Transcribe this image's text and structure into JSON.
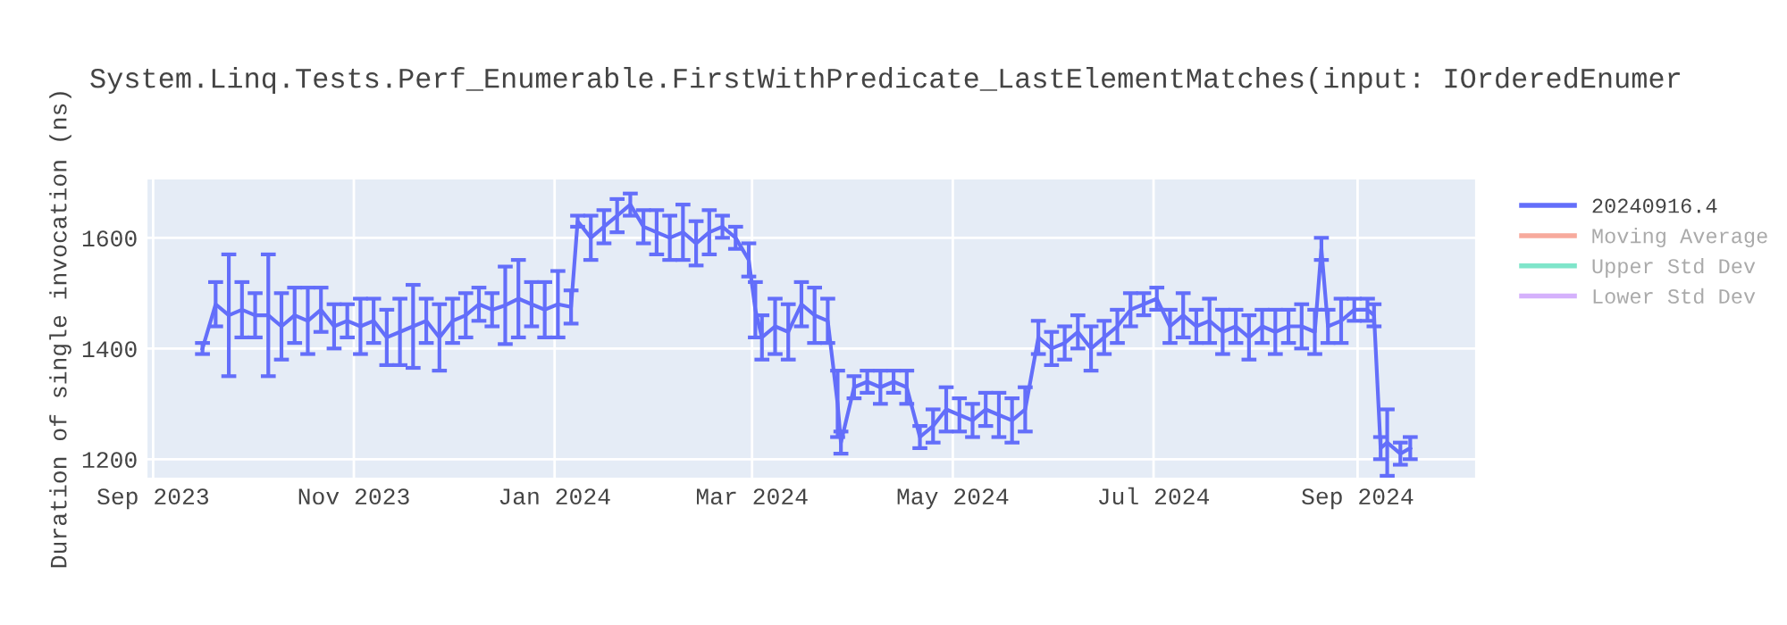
{
  "chart_data": {
    "type": "line",
    "title": "System.Linq.Tests.Perf_Enumerable.FirstWithPredicate_LastElementMatches(input: IOrderedEnumer",
    "ylabel": "Duration of single invocation (ns)",
    "x": [
      "2023-09-16",
      "2023-09-20",
      "2023-09-24",
      "2023-09-28",
      "2023-10-02",
      "2023-10-06",
      "2023-10-10",
      "2023-10-14",
      "2023-10-18",
      "2023-10-22",
      "2023-10-26",
      "2023-10-30",
      "2023-11-03",
      "2023-11-07",
      "2023-11-11",
      "2023-11-15",
      "2023-11-19",
      "2023-11-23",
      "2023-11-27",
      "2023-12-01",
      "2023-12-05",
      "2023-12-09",
      "2023-12-13",
      "2023-12-17",
      "2023-12-21",
      "2023-12-25",
      "2023-12-29",
      "2024-01-02",
      "2024-01-06",
      "2024-01-08",
      "2024-01-12",
      "2024-01-16",
      "2024-01-20",
      "2024-01-24",
      "2024-01-28",
      "2024-02-01",
      "2024-02-05",
      "2024-02-09",
      "2024-02-13",
      "2024-02-17",
      "2024-02-21",
      "2024-02-25",
      "2024-02-29",
      "2024-03-02",
      "2024-03-04",
      "2024-03-08",
      "2024-03-12",
      "2024-03-16",
      "2024-03-20",
      "2024-03-24",
      "2024-03-27",
      "2024-03-28",
      "2024-04-01",
      "2024-04-05",
      "2024-04-09",
      "2024-04-13",
      "2024-04-17",
      "2024-04-21",
      "2024-04-25",
      "2024-04-29",
      "2024-05-03",
      "2024-05-07",
      "2024-05-11",
      "2024-05-15",
      "2024-05-19",
      "2024-05-23",
      "2024-05-27",
      "2024-05-31",
      "2024-06-04",
      "2024-06-08",
      "2024-06-12",
      "2024-06-16",
      "2024-06-20",
      "2024-06-24",
      "2024-06-28",
      "2024-07-02",
      "2024-07-06",
      "2024-07-10",
      "2024-07-14",
      "2024-07-18",
      "2024-07-22",
      "2024-07-26",
      "2024-07-30",
      "2024-08-03",
      "2024-08-07",
      "2024-08-11",
      "2024-08-15",
      "2024-08-19",
      "2024-08-21",
      "2024-08-23",
      "2024-08-27",
      "2024-08-31",
      "2024-09-04",
      "2024-09-06",
      "2024-09-08",
      "2024-09-10",
      "2024-09-14",
      "2024-09-17"
    ],
    "series": [
      {
        "name": "20240916.4",
        "color": "#636efa",
        "values": [
          1400,
          1480,
          1460,
          1470,
          1460,
          1460,
          1440,
          1460,
          1450,
          1470,
          1440,
          1450,
          1440,
          1450,
          1420,
          1430,
          1440,
          1450,
          1420,
          1450,
          1460,
          1480,
          1470,
          1478,
          1490,
          1480,
          1470,
          1480,
          1475,
          1630,
          1600,
          1620,
          1640,
          1660,
          1620,
          1610,
          1600,
          1610,
          1590,
          1610,
          1620,
          1600,
          1560,
          1470,
          1420,
          1440,
          1430,
          1480,
          1460,
          1450,
          1300,
          1230,
          1330,
          1340,
          1330,
          1340,
          1330,
          1240,
          1260,
          1290,
          1280,
          1270,
          1290,
          1280,
          1270,
          1290,
          1420,
          1400,
          1410,
          1430,
          1400,
          1420,
          1440,
          1470,
          1480,
          1490,
          1440,
          1460,
          1440,
          1450,
          1430,
          1440,
          1420,
          1440,
          1430,
          1440,
          1440,
          1430,
          1580,
          1440,
          1450,
          1470,
          1470,
          1460,
          1220,
          1230,
          1210,
          1220
        ],
        "errors": [
          10,
          40,
          110,
          50,
          40,
          110,
          60,
          50,
          60,
          40,
          40,
          30,
          50,
          40,
          50,
          60,
          75,
          40,
          60,
          40,
          40,
          30,
          30,
          70,
          70,
          40,
          50,
          60,
          30,
          10,
          40,
          30,
          30,
          20,
          30,
          40,
          40,
          50,
          40,
          40,
          20,
          20,
          30,
          50,
          40,
          50,
          50,
          40,
          50,
          40,
          60,
          20,
          20,
          20,
          30,
          20,
          30,
          20,
          30,
          40,
          30,
          30,
          30,
          40,
          40,
          40,
          30,
          30,
          30,
          30,
          40,
          30,
          30,
          30,
          20,
          20,
          30,
          40,
          30,
          40,
          40,
          30,
          40,
          30,
          40,
          30,
          40,
          40,
          20,
          30,
          40,
          20,
          20,
          20,
          20,
          60,
          20,
          20
        ]
      },
      {
        "name": "Moving Average",
        "color": "#ef553b",
        "values": [
          null,
          null,
          null,
          null,
          null,
          null,
          null,
          null,
          null,
          null,
          null,
          null,
          null,
          null,
          null,
          null,
          null,
          null,
          null,
          null,
          null,
          null,
          null,
          null,
          null,
          null,
          null,
          null,
          null,
          null,
          null,
          null,
          null,
          null,
          null,
          null,
          null,
          null,
          null,
          null,
          null,
          null,
          null,
          null,
          null,
          null,
          null,
          null,
          null,
          null,
          null,
          null,
          null,
          null,
          null,
          null,
          null,
          null,
          null,
          null,
          null,
          null,
          null,
          null,
          null,
          null,
          null,
          null,
          null,
          null,
          null,
          null,
          null,
          null,
          null,
          null,
          null,
          null,
          null,
          null,
          null,
          null,
          null,
          null,
          null,
          null,
          null,
          null,
          null,
          null,
          null,
          null,
          null,
          null,
          null,
          null,
          null,
          null
        ]
      },
      {
        "name": "Upper Std Dev",
        "color": "#00cc96",
        "values": [
          null,
          null,
          null,
          null,
          null,
          null,
          null,
          null,
          null,
          null,
          null,
          null,
          null,
          null,
          null,
          null,
          null,
          null,
          null,
          null,
          null,
          null,
          null,
          null,
          null,
          null,
          null,
          null,
          null,
          null,
          null,
          null,
          null,
          null,
          null,
          null,
          null,
          null,
          null,
          null,
          null,
          null,
          null,
          null,
          null,
          null,
          null,
          null,
          null,
          null,
          null,
          null,
          null,
          null,
          null,
          null,
          null,
          null,
          null,
          null,
          null,
          null,
          null,
          null,
          null,
          null,
          null,
          null,
          null,
          null,
          null,
          null,
          null,
          null,
          null,
          null,
          null,
          null,
          null,
          null,
          null,
          null,
          null,
          null,
          null,
          null,
          null,
          null,
          null,
          null,
          null,
          null,
          null,
          null,
          null,
          null,
          null,
          null
        ]
      },
      {
        "name": "Lower Std Dev",
        "color": "#ab63fa",
        "values": [
          null,
          null,
          null,
          null,
          null,
          null,
          null,
          null,
          null,
          null,
          null,
          null,
          null,
          null,
          null,
          null,
          null,
          null,
          null,
          null,
          null,
          null,
          null,
          null,
          null,
          null,
          null,
          null,
          null,
          null,
          null,
          null,
          null,
          null,
          null,
          null,
          null,
          null,
          null,
          null,
          null,
          null,
          null,
          null,
          null,
          null,
          null,
          null,
          null,
          null,
          null,
          null,
          null,
          null,
          null,
          null,
          null,
          null,
          null,
          null,
          null,
          null,
          null,
          null,
          null,
          null,
          null,
          null,
          null,
          null,
          null,
          null,
          null,
          null,
          null,
          null,
          null,
          null,
          null,
          null,
          null,
          null,
          null,
          null,
          null,
          null,
          null,
          null,
          null,
          null,
          null,
          null,
          null,
          null,
          null,
          null,
          null,
          null
        ]
      }
    ],
    "xlim": [
      "2023-08-30",
      "2024-10-07"
    ],
    "xticks": [
      {
        "value": "2023-09-01",
        "label": "Sep 2023"
      },
      {
        "value": "2023-11-01",
        "label": "Nov 2023"
      },
      {
        "value": "2024-01-01",
        "label": "Jan 2024"
      },
      {
        "value": "2024-03-01",
        "label": "Mar 2024"
      },
      {
        "value": "2024-05-01",
        "label": "May 2024"
      },
      {
        "value": "2024-07-01",
        "label": "Jul 2024"
      },
      {
        "value": "2024-09-01",
        "label": "Sep 2024"
      }
    ],
    "ylim": [
      1165,
      1707
    ],
    "yticks": [
      1200,
      1400,
      1600
    ],
    "grid": true,
    "legend": "right"
  }
}
